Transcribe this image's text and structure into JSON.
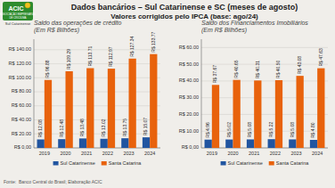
{
  "title": "Dados bancários – Sul Catarinense e SC (meses de agosto)",
  "subtitle": "Valores corrigidos pelo IPCA (base: ago/24)",
  "annotations": [
    "Fonte:  Banco Central do Brasil; Elaboração ACIC",
    "ACIC",
    "ASSOCIAÇÃO EMPRESARIAL",
    "DE CRICIÚMA",
    "Sul Catarinense"
  ],
  "chart_data": [
    {
      "type": "bar",
      "title": "Saldo das operações de crédito\n(Em R$ Bilhões)",
      "categories": [
        "2019",
        "2020",
        "2021",
        "2022",
        "2023",
        "2024"
      ],
      "series": [
        {
          "name": "Sul Catarinense",
          "color": "#2155a0",
          "values": [
            12.08,
            12.48,
            13.48,
            13.02,
            13.75,
            15.07
          ],
          "value_labels": [
            "R$ 12.08",
            "R$ 12.48",
            "R$ 13.48",
            "R$ 13.02",
            "R$ 13.75",
            "R$ 15.07"
          ]
        },
        {
          "name": "Santa Catarina",
          "color": "#e8620c",
          "values": [
            96.88,
            109.29,
            113.71,
            112.97,
            127.34,
            133.77
          ],
          "value_labels": [
            "R$ 96.88",
            "R$ 109.29",
            "R$ 113.71",
            "R$ 112.97",
            "R$ 127.34",
            "R$ 133.77"
          ]
        }
      ],
      "ylim": [
        0,
        155
      ],
      "yticks": [
        {
          "value": 0,
          "label": "R$ 0,00"
        },
        {
          "value": 20,
          "label": "R$ 20.00"
        },
        {
          "value": 40,
          "label": "R$ 40.00"
        },
        {
          "value": 60,
          "label": "R$ 60.00"
        },
        {
          "value": 80,
          "label": "R$ 80.00"
        },
        {
          "value": 100,
          "label": "R$ 100.00"
        },
        {
          "value": 120,
          "label": "R$ 120.00"
        },
        {
          "value": 140,
          "label": "R$ 140.00"
        }
      ],
      "grid": true,
      "legend": "bottom",
      "data_labels": true
    },
    {
      "type": "bar",
      "title": "Saldo dos Financiamentos Imobiliários\n(Em R$ Bilhões)",
      "categories": [
        "2019",
        "2020",
        "2021",
        "2022",
        "2023",
        "2024"
      ],
      "series": [
        {
          "name": "Sul Catarinense",
          "color": "#2155a0",
          "values": [
            4.96,
            5.02,
            5.08,
            5.22,
            5.08,
            4.8
          ],
          "value_labels": [
            "R$ 4.96",
            "R$ 5.02",
            "R$ 5.08",
            "R$ 5.22",
            "R$ 5.08",
            "R$ 4.80"
          ]
        },
        {
          "name": "Santa Catarina",
          "color": "#e8620c",
          "values": [
            37.67,
            40.65,
            40.31,
            40.5,
            43.08,
            47.63
          ],
          "value_labels": [
            "R$ 37.67",
            "R$ 40.65",
            "R$ 40.31",
            "R$ 40.50",
            "R$ 43.08",
            "R$ 47.63"
          ]
        }
      ],
      "ylim": [
        0,
        65
      ],
      "yticks": [
        {
          "value": 0,
          "label": "R$ 0,00"
        },
        {
          "value": 10,
          "label": "R$ 10.00"
        },
        {
          "value": 20,
          "label": "R$ 20.00"
        },
        {
          "value": 30,
          "label": "R$ 30.00"
        },
        {
          "value": 40,
          "label": "R$ 40.00"
        },
        {
          "value": 50,
          "label": "R$ 50.00"
        },
        {
          "value": 60,
          "label": "R$ 60.00"
        }
      ],
      "grid": true,
      "legend": "bottom",
      "data_labels": true
    }
  ]
}
